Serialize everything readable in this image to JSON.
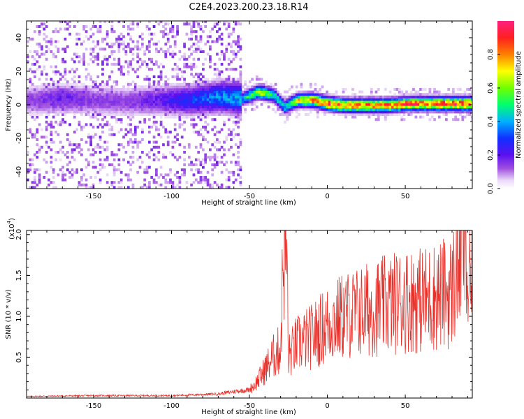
{
  "title": "C2E4.2023.200.23.18.R14",
  "chart_data": [
    {
      "type": "heatmap",
      "xlabel": "Height of straight line (km)",
      "ylabel": "Frequency (Hz)",
      "xlim": [
        -193,
        93
      ],
      "ylim": [
        -50,
        50
      ],
      "xticks": [
        "-150",
        "-100",
        "-50",
        "0",
        "50"
      ],
      "xtick_values": [
        -150,
        -100,
        -50,
        0,
        50
      ],
      "yticks": [
        "-40",
        "-20",
        "0",
        "20",
        "40"
      ],
      "ytick_values": [
        -40,
        -20,
        0,
        20,
        40
      ],
      "colorbar": {
        "label": "Normalized spectral amplitude",
        "ticks": [
          "0.0",
          "0.2",
          "0.4",
          "0.6",
          "0.8"
        ],
        "tick_values": [
          0.0,
          0.2,
          0.4,
          0.6,
          0.8
        ],
        "range": [
          0,
          1
        ],
        "colormap": "rainbow"
      },
      "ridge": {
        "x": [
          -190,
          -170,
          -150,
          -130,
          -110,
          -90,
          -70,
          -55,
          -45,
          -35,
          -28,
          -20,
          -10,
          0,
          10,
          20,
          30,
          40,
          50,
          60,
          70,
          80,
          92
        ],
        "frequency": [
          2,
          3,
          2,
          1,
          2,
          2,
          4,
          3,
          7,
          5,
          -2,
          2,
          2,
          0,
          -1,
          -1,
          -1,
          -1,
          0,
          0,
          0,
          0,
          0
        ],
        "amplitude": [
          0.15,
          0.2,
          0.15,
          0.15,
          0.2,
          0.3,
          0.4,
          0.45,
          0.7,
          0.55,
          0.45,
          0.75,
          0.85,
          0.9,
          0.85,
          0.85,
          0.85,
          0.85,
          0.9,
          0.9,
          0.95,
          0.95,
          0.95
        ]
      },
      "grid": false
    },
    {
      "type": "line",
      "xlabel": "Height of straight line (km)",
      "ylabel": "SNR (10 * v/v)",
      "y_multiplier_label": "(x10",
      "y_multiplier_exp": "4",
      "y_multiplier_close": ")",
      "xlim": [
        -193,
        93
      ],
      "ylim": [
        0,
        2.05
      ],
      "xticks": [
        "-150",
        "-100",
        "-50",
        "0",
        "50"
      ],
      "xtick_values": [
        -150,
        -100,
        -50,
        0,
        50
      ],
      "yticks": [
        "0.5",
        "1.0",
        "1.5",
        "2.0"
      ],
      "ytick_values": [
        0.5,
        1.0,
        1.5,
        2.0
      ],
      "series": [
        {
          "color": "#e8302a",
          "x": [
            -193,
            -150,
            -100,
            -70,
            -60,
            -50,
            -45,
            -40,
            -35,
            -30,
            -28,
            -26,
            -25,
            -20,
            -10,
            0,
            10,
            20,
            30,
            40,
            50,
            60,
            70,
            80,
            88,
            90,
            93
          ],
          "y": [
            0.02,
            0.03,
            0.03,
            0.05,
            0.08,
            0.1,
            0.2,
            0.35,
            0.5,
            0.6,
            1.9,
            1.75,
            0.5,
            0.65,
            0.75,
            0.9,
            1.0,
            1.05,
            1.1,
            1.15,
            1.2,
            1.2,
            1.25,
            1.3,
            2.05,
            1.3,
            1.35
          ]
        }
      ],
      "grid": false
    }
  ]
}
